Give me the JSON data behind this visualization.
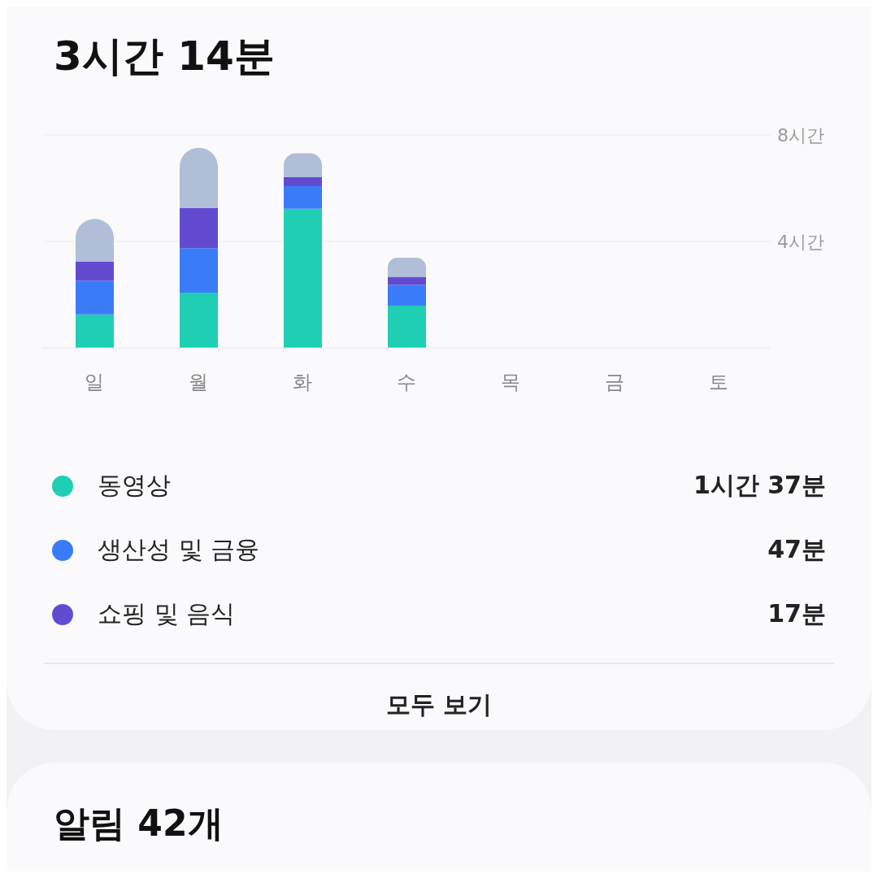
{
  "chart_data": {
    "type": "bar",
    "title": "3시간 14분",
    "stacked": true,
    "categories": [
      "일",
      "월",
      "화",
      "수",
      "목",
      "금",
      "토"
    ],
    "series": [
      {
        "name": "동영상",
        "color": "#1ecfb4",
        "values": [
          1.26,
          2.08,
          5.23,
          1.59,
          null,
          null,
          null
        ]
      },
      {
        "name": "생산성 및 금융",
        "color": "#3a7cf7",
        "values": [
          1.26,
          1.67,
          0.85,
          0.78,
          null,
          null,
          null
        ]
      },
      {
        "name": "쇼핑 및 음식",
        "color": "#624bd0",
        "values": [
          0.72,
          1.51,
          0.33,
          0.3,
          null,
          null,
          null
        ]
      },
      {
        "color": "#b0bed8",
        "values": [
          1.61,
          2.26,
          0.9,
          0.72,
          null,
          null,
          null
        ]
      }
    ],
    "ylim": [
      0,
      8
    ],
    "yticks": [
      {
        "value": 4,
        "label": "4시간"
      },
      {
        "value": 8,
        "label": "8시간"
      }
    ],
    "grid": "y",
    "legend": "bottom",
    "annotations": [
      "1시간 37분",
      "47분",
      "17분",
      "모두 보기",
      "알림 42개"
    ]
  }
}
